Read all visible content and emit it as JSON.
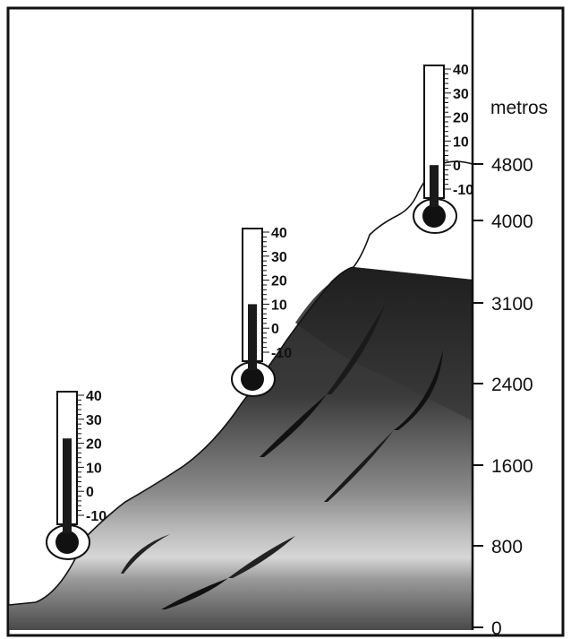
{
  "axis": {
    "unit_label": "metros",
    "ticks": [
      0,
      800,
      1600,
      2400,
      3100,
      4000,
      4800
    ]
  },
  "thermometer_scale": [
    40,
    30,
    20,
    10,
    0,
    -10
  ],
  "thermometers": [
    {
      "name": "thermometer-low",
      "reading": 22
    },
    {
      "name": "thermometer-mid",
      "reading": 10
    },
    {
      "name": "thermometer-high",
      "reading": 0
    }
  ],
  "colors": {
    "frame": "#111111",
    "mercury": "#1a1a1a",
    "mountain_dark": "#2a2a2a",
    "mountain_light": "#bdbdbd"
  }
}
